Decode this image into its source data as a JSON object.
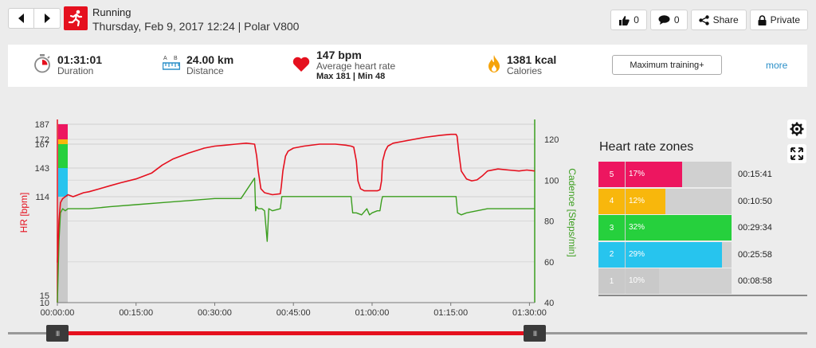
{
  "header": {
    "sport": "Running",
    "subtitle": "Thursday, Feb 9, 2017 12:24 | Polar V800",
    "likes": "0",
    "comments": "0",
    "share_label": "Share",
    "private_label": "Private"
  },
  "summary": {
    "duration": {
      "value": "01:31:01",
      "label": "Duration"
    },
    "distance": {
      "value": "24.00 km",
      "label": "Distance",
      "icon_a": "A",
      "icon_b": "B"
    },
    "heart_rate": {
      "value": "147 bpm",
      "label": "Average heart rate",
      "sub": "Max 181  |  Min 48"
    },
    "calories": {
      "value": "1381 kcal",
      "label": "Calories"
    },
    "training_button": "Maximum training+",
    "more_link": "more"
  },
  "chart_data": {
    "type": "line",
    "x_ticks": [
      "00:00:00",
      "00:15:00",
      "00:30:00",
      "00:45:00",
      "01:00:00",
      "01:15:00",
      "01:30:00"
    ],
    "x_range_minutes": [
      0,
      91
    ],
    "left_axis": {
      "label": "HR [bpm]",
      "ticks": [
        10,
        15,
        114,
        143,
        167,
        172,
        187
      ],
      "range": [
        10,
        187
      ]
    },
    "right_axis": {
      "label": "Cadence [Steps/min]",
      "ticks": [
        40,
        60,
        80,
        100,
        120
      ],
      "range": [
        40,
        127
      ]
    },
    "hr_zone_bands": [
      {
        "from": 10,
        "to": 114,
        "color": "#c9c9c9"
      },
      {
        "from": 114,
        "to": 143,
        "color": "#27c4ee"
      },
      {
        "from": 143,
        "to": 167,
        "color": "#26d03d"
      },
      {
        "from": 167,
        "to": 172,
        "color": "#f8b70c"
      },
      {
        "from": 172,
        "to": 187,
        "color": "#ed1660"
      }
    ],
    "series": [
      {
        "name": "HR [bpm]",
        "color": "#e5101e",
        "x": [
          0,
          0.3,
          0.6,
          1,
          1.5,
          2,
          3,
          4,
          5,
          6,
          8,
          10,
          12,
          15,
          18,
          20,
          22,
          25,
          28,
          30,
          32,
          34,
          36,
          37.6,
          38,
          38.3,
          38.8,
          39.5,
          41,
          42.5,
          42.7,
          43,
          43.5,
          44,
          45,
          47,
          50,
          53,
          55,
          56,
          56.5,
          57,
          57.3,
          57.8,
          58.5,
          60,
          61,
          61.5,
          61.8,
          62,
          62.5,
          63,
          64,
          66,
          70,
          73,
          75,
          76,
          76.2,
          76.5,
          77,
          78,
          79,
          80,
          81,
          82,
          84,
          86,
          88,
          89.5,
          91
        ],
        "y": [
          48,
          90,
          108,
          112,
          114,
          116,
          114,
          116,
          118,
          119,
          122,
          125,
          128,
          132,
          138,
          146,
          152,
          158,
          163,
          165,
          166,
          167,
          168,
          167,
          155,
          140,
          122,
          118,
          116,
          117,
          125,
          140,
          155,
          160,
          163,
          165,
          167,
          167,
          166,
          165,
          164,
          150,
          130,
          122,
          120,
          120,
          120,
          121,
          130,
          150,
          160,
          165,
          168,
          170,
          174,
          176,
          177,
          177,
          175,
          160,
          140,
          132,
          130,
          131,
          135,
          140,
          142,
          141,
          140,
          141,
          140
        ]
      },
      {
        "name": "Cadence [Steps/min]",
        "color": "#3b9e1e",
        "x": [
          0,
          0.3,
          0.6,
          1,
          1.5,
          2,
          3,
          4,
          6,
          10,
          15,
          20,
          25,
          30,
          35,
          37.6,
          37.8,
          38,
          38.3,
          39,
          39.5,
          40,
          40.3,
          41,
          42.5,
          42.8,
          43,
          50,
          55,
          56,
          56.3,
          57,
          58,
          59,
          59.5,
          60,
          61,
          61.5,
          61.8,
          62,
          70,
          75,
          76,
          76.3,
          77,
          78,
          80,
          82,
          85,
          88,
          91
        ],
        "y": [
          40,
          70,
          84,
          86,
          85,
          86,
          86,
          86,
          86,
          87,
          88,
          89,
          90,
          91,
          91,
          101,
          85,
          87,
          86,
          86,
          85,
          70,
          86,
          85,
          86,
          92,
          92,
          92,
          92,
          92,
          84,
          84,
          83,
          86,
          83,
          84,
          85,
          85,
          90,
          92,
          92,
          92,
          92,
          84,
          83,
          84,
          85,
          86,
          86,
          86,
          86
        ]
      }
    ]
  },
  "zones": {
    "title": "Heart rate zones",
    "rows": [
      {
        "zone": "5",
        "pct": "17%",
        "percent": 17,
        "time": "00:15:41",
        "color": "#ed1660"
      },
      {
        "zone": "4",
        "pct": "12%",
        "percent": 12,
        "time": "00:10:50",
        "color": "#f8b70c"
      },
      {
        "zone": "3",
        "pct": "32%",
        "percent": 32,
        "time": "00:29:34",
        "color": "#26d03d"
      },
      {
        "zone": "2",
        "pct": "29%",
        "percent": 29,
        "time": "00:25:58",
        "color": "#27c4ee"
      },
      {
        "zone": "1",
        "pct": "10%",
        "percent": 10,
        "time": "00:08:58",
        "color": "#c9c9c9"
      }
    ]
  },
  "range_slider": {
    "left_grip": "III",
    "right_grip": "III"
  }
}
